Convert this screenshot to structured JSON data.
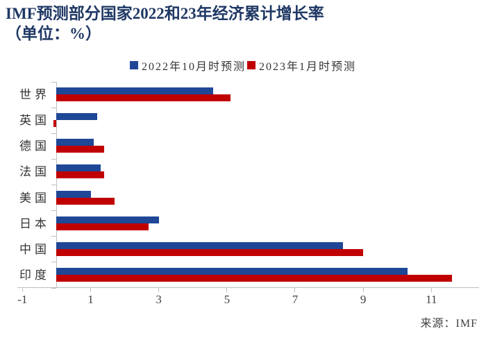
{
  "title": {
    "line1": "IMF预测部分国家2022和23年经济累计增长率",
    "line2": "（单位：%）"
  },
  "source": "来源：IMF",
  "colors": {
    "title": "#1f3864",
    "series_oct2022": "#1e4796",
    "series_jan2023": "#c00000",
    "axis": "#bfbfbf",
    "tick_text": "#404040",
    "label_text": "#333333",
    "background": "#ffffff"
  },
  "chart_data": {
    "type": "bar",
    "orientation": "horizontal",
    "title": "IMF预测部分国家2022和23年经济累计增长率（单位：%）",
    "categories": [
      "世界",
      "英国",
      "德国",
      "法国",
      "美国",
      "日本",
      "中国",
      "印度"
    ],
    "series": [
      {
        "name": "2022年10月时预测",
        "color": "#1e4796",
        "values": [
          4.6,
          1.2,
          1.1,
          1.3,
          1.0,
          3.0,
          8.4,
          10.3
        ]
      },
      {
        "name": "2023年1月时预测",
        "color": "#c00000",
        "values": [
          5.1,
          -0.1,
          1.4,
          1.4,
          1.7,
          2.7,
          9.0,
          11.6
        ]
      }
    ],
    "xticks": [
      -1,
      1,
      3,
      5,
      7,
      9,
      11
    ],
    "xlim": [
      -1.15,
      12.4
    ],
    "xlabel": "",
    "ylabel": "",
    "grid": false,
    "legend_position": "top-center",
    "source": "来源：IMF"
  }
}
